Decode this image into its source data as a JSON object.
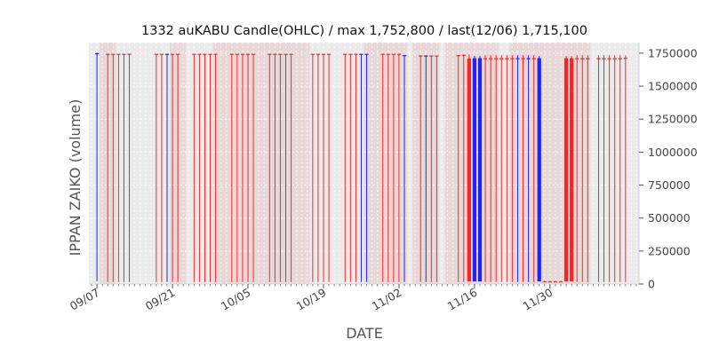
{
  "chart_data": {
    "type": "bar",
    "title": "1332 auKABU Candle(OHLC) / max 1,752,800 / last(12/06) 1,715,100",
    "xlabel": "DATE",
    "ylabel": "IPPAN ZAIKO (volume)",
    "ylim": [
      0,
      1830000
    ],
    "y_axis_side": "right",
    "grid": true,
    "x_tick_labels": [
      "09/07",
      "09/21",
      "10/05",
      "10/19",
      "11/02",
      "11/16",
      "11/30"
    ],
    "y_tick_labels": [
      "0",
      "250000",
      "500000",
      "750000",
      "1000000",
      "1250000",
      "1500000",
      "1750000"
    ],
    "colors": {
      "up": "#ff2222",
      "down": "#2222ff",
      "background": "#ebebeb",
      "shade": "#e8c8c8"
    },
    "start_date": "09/06",
    "shaded_day_ranges": [
      [
        2,
        4
      ],
      [
        15,
        17
      ],
      [
        23,
        26
      ],
      [
        27,
        40
      ],
      [
        51,
        58
      ],
      [
        60,
        64
      ],
      [
        66,
        71
      ],
      [
        72,
        75
      ],
      [
        78,
        86
      ],
      [
        87,
        92
      ]
    ],
    "candles": [
      {
        "day": 1,
        "color": "down",
        "open": 1750000,
        "close": 1750000,
        "high": 1752800,
        "low": 20000
      },
      {
        "day": 3,
        "color": "up",
        "open": 1745000,
        "close": 1745000,
        "high": 1746000,
        "low": 15000
      },
      {
        "day": 4,
        "color": "up",
        "open": 1745000,
        "close": 1745000,
        "high": 1746000,
        "low": 15000
      },
      {
        "day": 5,
        "color": "up",
        "open": 1745000,
        "close": 1745000,
        "high": 1746000,
        "low": 15000
      },
      {
        "day": 6,
        "color": "up",
        "open": 1745000,
        "close": 1745000,
        "high": 1746000,
        "low": 15000
      },
      {
        "day": 7,
        "color": "up",
        "open": 1745000,
        "close": 1745000,
        "high": 1746000,
        "low": 15000
      },
      {
        "day": 12,
        "color": "up",
        "open": 1745000,
        "close": 1745000,
        "high": 1746000,
        "low": 15000
      },
      {
        "day": 13,
        "color": "up",
        "open": 1745000,
        "close": 1745000,
        "high": 1746000,
        "low": 15000
      },
      {
        "day": 14,
        "color": "down",
        "open": 1745000,
        "close": 1745000,
        "high": 1746000,
        "low": 15000
      },
      {
        "day": 15,
        "color": "up",
        "open": 1745000,
        "close": 1745000,
        "high": 1746000,
        "low": 15000
      },
      {
        "day": 16,
        "color": "up",
        "open": 1745000,
        "close": 1745000,
        "high": 1746000,
        "low": 15000
      },
      {
        "day": 19,
        "color": "up",
        "open": 1745000,
        "close": 1745000,
        "high": 1746000,
        "low": 15000
      },
      {
        "day": 20,
        "color": "up",
        "open": 1745000,
        "close": 1745000,
        "high": 1746000,
        "low": 15000
      },
      {
        "day": 21,
        "color": "up",
        "open": 1745000,
        "close": 1745000,
        "high": 1746000,
        "low": 15000
      },
      {
        "day": 22,
        "color": "up",
        "open": 1745000,
        "close": 1745000,
        "high": 1746000,
        "low": 15000
      },
      {
        "day": 23,
        "color": "up",
        "open": 1745000,
        "close": 1745000,
        "high": 1746000,
        "low": 15000
      },
      {
        "day": 26,
        "color": "up",
        "open": 1745000,
        "close": 1745000,
        "high": 1746000,
        "low": 15000
      },
      {
        "day": 27,
        "color": "up",
        "open": 1745000,
        "close": 1745000,
        "high": 1746000,
        "low": 15000
      },
      {
        "day": 28,
        "color": "up",
        "open": 1745000,
        "close": 1745000,
        "high": 1746000,
        "low": 15000
      },
      {
        "day": 29,
        "color": "up",
        "open": 1745000,
        "close": 1745000,
        "high": 1746000,
        "low": 15000
      },
      {
        "day": 30,
        "color": "up",
        "open": 1745000,
        "close": 1745000,
        "high": 1746000,
        "low": 15000
      },
      {
        "day": 33,
        "color": "up",
        "open": 1745000,
        "close": 1745000,
        "high": 1746000,
        "low": 15000
      },
      {
        "day": 34,
        "color": "up",
        "open": 1745000,
        "close": 1745000,
        "high": 1746000,
        "low": 15000
      },
      {
        "day": 35,
        "color": "up",
        "open": 1745000,
        "close": 1745000,
        "high": 1746000,
        "low": 15000
      },
      {
        "day": 36,
        "color": "up",
        "open": 1745000,
        "close": 1745000,
        "high": 1746000,
        "low": 15000
      },
      {
        "day": 37,
        "color": "up",
        "open": 1745000,
        "close": 1745000,
        "high": 1746000,
        "low": 15000
      },
      {
        "day": 41,
        "color": "up",
        "open": 1745000,
        "close": 1745000,
        "high": 1746000,
        "low": 15000
      },
      {
        "day": 42,
        "color": "up",
        "open": 1745000,
        "close": 1745000,
        "high": 1746000,
        "low": 15000
      },
      {
        "day": 43,
        "color": "up",
        "open": 1745000,
        "close": 1745000,
        "high": 1746000,
        "low": 15000
      },
      {
        "day": 44,
        "color": "up",
        "open": 1745000,
        "close": 1745000,
        "high": 1746000,
        "low": 15000
      },
      {
        "day": 47,
        "color": "up",
        "open": 1745000,
        "close": 1745000,
        "high": 1746000,
        "low": 15000
      },
      {
        "day": 48,
        "color": "up",
        "open": 1745000,
        "close": 1745000,
        "high": 1746000,
        "low": 15000
      },
      {
        "day": 49,
        "color": "up",
        "open": 1745000,
        "close": 1745000,
        "high": 1746000,
        "low": 15000
      },
      {
        "day": 50,
        "color": "down",
        "open": 1745000,
        "close": 1745000,
        "high": 1746000,
        "low": 15000
      },
      {
        "day": 51,
        "color": "down",
        "open": 1745000,
        "close": 1745000,
        "high": 1746000,
        "low": 15000
      },
      {
        "day": 54,
        "color": "up",
        "open": 1745000,
        "close": 1745000,
        "high": 1746000,
        "low": 15000
      },
      {
        "day": 55,
        "color": "up",
        "open": 1745000,
        "close": 1745000,
        "high": 1746000,
        "low": 15000
      },
      {
        "day": 56,
        "color": "up",
        "open": 1745000,
        "close": 1745000,
        "high": 1746000,
        "low": 15000
      },
      {
        "day": 57,
        "color": "up",
        "open": 1745000,
        "close": 1745000,
        "high": 1746000,
        "low": 15000
      },
      {
        "day": 58,
        "color": "down",
        "open": 1735000,
        "close": 1735000,
        "high": 1736000,
        "low": 15000
      },
      {
        "day": 61,
        "color": "up",
        "open": 1732000,
        "close": 1732000,
        "high": 1734000,
        "low": 15000
      },
      {
        "day": 62,
        "color": "down",
        "open": 1732000,
        "close": 1732000,
        "high": 1734000,
        "low": 15000
      },
      {
        "day": 63,
        "color": "up",
        "open": 1732000,
        "close": 1732000,
        "high": 1734000,
        "low": 15000
      },
      {
        "day": 64,
        "color": "up",
        "open": 1732000,
        "close": 1732000,
        "high": 1734000,
        "low": 15000
      },
      {
        "day": 68,
        "color": "up",
        "open": 1735000,
        "close": 1735000,
        "high": 1736000,
        "low": 15000
      },
      {
        "day": 69,
        "color": "up",
        "open": 1738000,
        "close": 1738000,
        "high": 1740000,
        "low": 15000
      },
      {
        "day": 70,
        "color": "up",
        "open": 1710000,
        "close": 20000,
        "high": 1740000,
        "low": 20000
      },
      {
        "day": 71,
        "color": "down",
        "open": 1712000,
        "close": 20000,
        "high": 1730000,
        "low": 20000
      },
      {
        "day": 72,
        "color": "down",
        "open": 1712000,
        "close": 20000,
        "high": 1730000,
        "low": 20000
      },
      {
        "day": 73,
        "color": "up",
        "open": 1712000,
        "close": 1712000,
        "high": 1735000,
        "low": 15000
      },
      {
        "day": 74,
        "color": "up",
        "open": 1712000,
        "close": 1712000,
        "high": 1735000,
        "low": 15000
      },
      {
        "day": 75,
        "color": "up",
        "open": 1712000,
        "close": 1712000,
        "high": 1735000,
        "low": 15000
      },
      {
        "day": 76,
        "color": "up",
        "open": 1712000,
        "close": 1712000,
        "high": 1735000,
        "low": 15000
      },
      {
        "day": 77,
        "color": "up",
        "open": 1712000,
        "close": 1712000,
        "high": 1735000,
        "low": 15000
      },
      {
        "day": 78,
        "color": "up",
        "open": 1712000,
        "close": 1712000,
        "high": 1735000,
        "low": 15000
      },
      {
        "day": 79,
        "color": "down",
        "open": 1712000,
        "close": 1712000,
        "high": 1735000,
        "low": 15000
      },
      {
        "day": 80,
        "color": "up",
        "open": 1712000,
        "close": 1712000,
        "high": 1735000,
        "low": 15000
      },
      {
        "day": 81,
        "color": "down",
        "open": 1712000,
        "close": 1712000,
        "high": 1735000,
        "low": 15000
      },
      {
        "day": 82,
        "color": "up",
        "open": 1712000,
        "close": 1712000,
        "high": 1735000,
        "low": 15000
      },
      {
        "day": 83,
        "color": "down",
        "open": 1712000,
        "close": 20000,
        "high": 1730000,
        "low": 20000
      },
      {
        "day": 84,
        "color": "up",
        "open": 20000,
        "close": 20000,
        "high": 25000,
        "low": 15000
      },
      {
        "day": 85,
        "color": "up",
        "open": 20000,
        "close": 20000,
        "high": 25000,
        "low": 15000
      },
      {
        "day": 86,
        "color": "up",
        "open": 20000,
        "close": 20000,
        "high": 25000,
        "low": 15000
      },
      {
        "day": 87,
        "color": "up",
        "open": 20000,
        "close": 20000,
        "high": 25000,
        "low": 15000
      },
      {
        "day": 88,
        "color": "up",
        "open": 1712000,
        "close": 20000,
        "high": 1730000,
        "low": 20000
      },
      {
        "day": 89,
        "color": "up",
        "open": 1712000,
        "close": 20000,
        "high": 1730000,
        "low": 20000
      },
      {
        "day": 90,
        "color": "up",
        "open": 1712000,
        "close": 1712000,
        "high": 1735000,
        "low": 15000
      },
      {
        "day": 91,
        "color": "up",
        "open": 1712000,
        "close": 1712000,
        "high": 1735000,
        "low": 15000
      },
      {
        "day": 92,
        "color": "up",
        "open": 1712000,
        "close": 1712000,
        "high": 1735000,
        "low": 15000
      },
      {
        "day": 94,
        "color": "up",
        "open": 1712000,
        "close": 1712000,
        "high": 1735000,
        "low": 15000
      },
      {
        "day": 95,
        "color": "up",
        "open": 1712000,
        "close": 1712000,
        "high": 1735000,
        "low": 15000
      },
      {
        "day": 96,
        "color": "up",
        "open": 1712000,
        "close": 1712000,
        "high": 1735000,
        "low": 15000
      },
      {
        "day": 97,
        "color": "up",
        "open": 1712000,
        "close": 1712000,
        "high": 1735000,
        "low": 15000
      },
      {
        "day": 98,
        "color": "up",
        "open": 1712000,
        "close": 1712000,
        "high": 1735000,
        "low": 15000
      },
      {
        "day": 99,
        "color": "up",
        "open": 1715100,
        "close": 1715100,
        "high": 1735000,
        "low": 15000
      }
    ]
  }
}
